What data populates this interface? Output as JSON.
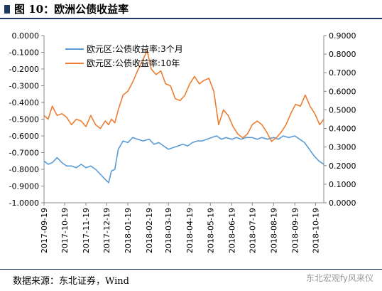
{
  "figure": {
    "title": "图 10：欧洲公债收益率",
    "source": "数据来源：东北证券，Wind",
    "watermark": "东北宏观fy风来仪"
  },
  "chart_data": {
    "type": "line",
    "title": "",
    "xlabel": "",
    "ylabel": "",
    "x_ticks": [
      "2017-09-19",
      "2017-10-19",
      "2017-11-19",
      "2017-12-19",
      "2018-01-19",
      "2018-02-19",
      "2018-03-19",
      "2018-04-19",
      "2018-05-19",
      "2018-06-19",
      "2018-07-19",
      "2018-08-19",
      "2018-09-19",
      "2018-10-19"
    ],
    "y_left": {
      "lim": [
        -1.0,
        0.0
      ],
      "ticks": [
        "0.0000",
        "-0.1000",
        "-0.2000",
        "-0.3000",
        "-0.4000",
        "-0.5000",
        "-0.6000",
        "-0.7000",
        "-0.8000",
        "-0.9000",
        "-1.0000"
      ]
    },
    "y_right": {
      "lim": [
        0.0,
        0.9
      ],
      "ticks": [
        "0.9000",
        "0.8000",
        "0.7000",
        "0.6000",
        "0.5000",
        "0.4000",
        "0.3000",
        "0.2000",
        "0.1000",
        "0.0000"
      ]
    },
    "grid": false,
    "legend": "top-left",
    "series": [
      {
        "name": "欧元区:公债收益率:3个月",
        "axis": "left",
        "color": "#5b9bd5",
        "points": [
          [
            "2017-09-19",
            -0.75
          ],
          [
            "2017-09-25",
            -0.77
          ],
          [
            "2017-10-01",
            -0.76
          ],
          [
            "2017-10-08",
            -0.73
          ],
          [
            "2017-10-15",
            -0.76
          ],
          [
            "2017-10-22",
            -0.78
          ],
          [
            "2017-10-29",
            -0.78
          ],
          [
            "2017-11-05",
            -0.79
          ],
          [
            "2017-11-12",
            -0.77
          ],
          [
            "2017-11-19",
            -0.79
          ],
          [
            "2017-11-26",
            -0.78
          ],
          [
            "2017-12-03",
            -0.8
          ],
          [
            "2017-12-10",
            -0.83
          ],
          [
            "2017-12-17",
            -0.86
          ],
          [
            "2017-12-22",
            -0.88
          ],
          [
            "2017-12-26",
            -0.81
          ],
          [
            "2017-12-31",
            -0.8
          ],
          [
            "2018-01-05",
            -0.68
          ],
          [
            "2018-01-12",
            -0.63
          ],
          [
            "2018-01-19",
            -0.64
          ],
          [
            "2018-01-26",
            -0.61
          ],
          [
            "2018-02-02",
            -0.62
          ],
          [
            "2018-02-10",
            -0.63
          ],
          [
            "2018-02-19",
            -0.62
          ],
          [
            "2018-02-26",
            -0.65
          ],
          [
            "2018-03-05",
            -0.64
          ],
          [
            "2018-03-12",
            -0.66
          ],
          [
            "2018-03-19",
            -0.68
          ],
          [
            "2018-03-26",
            -0.67
          ],
          [
            "2018-04-02",
            -0.66
          ],
          [
            "2018-04-09",
            -0.65
          ],
          [
            "2018-04-16",
            -0.66
          ],
          [
            "2018-04-23",
            -0.64
          ],
          [
            "2018-04-30",
            -0.63
          ],
          [
            "2018-05-07",
            -0.63
          ],
          [
            "2018-05-14",
            -0.62
          ],
          [
            "2018-05-21",
            -0.61
          ],
          [
            "2018-05-28",
            -0.6
          ],
          [
            "2018-06-04",
            -0.62
          ],
          [
            "2018-06-11",
            -0.61
          ],
          [
            "2018-06-19",
            -0.62
          ],
          [
            "2018-06-26",
            -0.61
          ],
          [
            "2018-07-03",
            -0.62
          ],
          [
            "2018-07-10",
            -0.61
          ],
          [
            "2018-07-19",
            -0.61
          ],
          [
            "2018-07-26",
            -0.62
          ],
          [
            "2018-08-02",
            -0.61
          ],
          [
            "2018-08-10",
            -0.62
          ],
          [
            "2018-08-19",
            -0.61
          ],
          [
            "2018-08-26",
            -0.62
          ],
          [
            "2018-09-02",
            -0.6
          ],
          [
            "2018-09-10",
            -0.61
          ],
          [
            "2018-09-19",
            -0.6
          ],
          [
            "2018-09-26",
            -0.62
          ],
          [
            "2018-10-03",
            -0.64
          ],
          [
            "2018-10-10",
            -0.68
          ],
          [
            "2018-10-17",
            -0.72
          ],
          [
            "2018-10-24",
            -0.75
          ],
          [
            "2018-10-31",
            -0.77
          ]
        ]
      },
      {
        "name": "欧元区:公债收益率:10年",
        "axis": "right",
        "color": "#ed7d31",
        "points": [
          [
            "2017-09-19",
            0.47
          ],
          [
            "2017-09-25",
            0.45
          ],
          [
            "2017-10-01",
            0.52
          ],
          [
            "2017-10-08",
            0.47
          ],
          [
            "2017-10-15",
            0.48
          ],
          [
            "2017-10-22",
            0.46
          ],
          [
            "2017-10-29",
            0.42
          ],
          [
            "2017-11-05",
            0.45
          ],
          [
            "2017-11-12",
            0.44
          ],
          [
            "2017-11-19",
            0.41
          ],
          [
            "2017-11-26",
            0.47
          ],
          [
            "2017-12-03",
            0.42
          ],
          [
            "2017-12-10",
            0.4
          ],
          [
            "2017-12-17",
            0.44
          ],
          [
            "2017-12-22",
            0.42
          ],
          [
            "2017-12-26",
            0.45
          ],
          [
            "2017-12-31",
            0.43
          ],
          [
            "2018-01-05",
            0.5
          ],
          [
            "2018-01-12",
            0.58
          ],
          [
            "2018-01-19",
            0.6
          ],
          [
            "2018-01-26",
            0.65
          ],
          [
            "2018-02-02",
            0.71
          ],
          [
            "2018-02-10",
            0.77
          ],
          [
            "2018-02-16",
            0.82
          ],
          [
            "2018-02-22",
            0.72
          ],
          [
            "2018-03-01",
            0.69
          ],
          [
            "2018-03-08",
            0.71
          ],
          [
            "2018-03-15",
            0.64
          ],
          [
            "2018-03-22",
            0.63
          ],
          [
            "2018-03-29",
            0.56
          ],
          [
            "2018-04-05",
            0.55
          ],
          [
            "2018-04-12",
            0.58
          ],
          [
            "2018-04-19",
            0.64
          ],
          [
            "2018-04-26",
            0.68
          ],
          [
            "2018-05-03",
            0.64
          ],
          [
            "2018-05-10",
            0.66
          ],
          [
            "2018-05-17",
            0.67
          ],
          [
            "2018-05-24",
            0.6
          ],
          [
            "2018-05-31",
            0.42
          ],
          [
            "2018-06-07",
            0.5
          ],
          [
            "2018-06-14",
            0.47
          ],
          [
            "2018-06-21",
            0.41
          ],
          [
            "2018-06-28",
            0.37
          ],
          [
            "2018-07-05",
            0.35
          ],
          [
            "2018-07-12",
            0.37
          ],
          [
            "2018-07-19",
            0.42
          ],
          [
            "2018-07-26",
            0.44
          ],
          [
            "2018-08-02",
            0.42
          ],
          [
            "2018-08-09",
            0.38
          ],
          [
            "2018-08-16",
            0.33
          ],
          [
            "2018-08-23",
            0.35
          ],
          [
            "2018-08-30",
            0.38
          ],
          [
            "2018-09-06",
            0.42
          ],
          [
            "2018-09-13",
            0.48
          ],
          [
            "2018-09-20",
            0.53
          ],
          [
            "2018-09-27",
            0.52
          ],
          [
            "2018-10-04",
            0.58
          ],
          [
            "2018-10-11",
            0.52
          ],
          [
            "2018-10-18",
            0.48
          ],
          [
            "2018-10-25",
            0.42
          ],
          [
            "2018-10-31",
            0.45
          ]
        ]
      }
    ]
  }
}
